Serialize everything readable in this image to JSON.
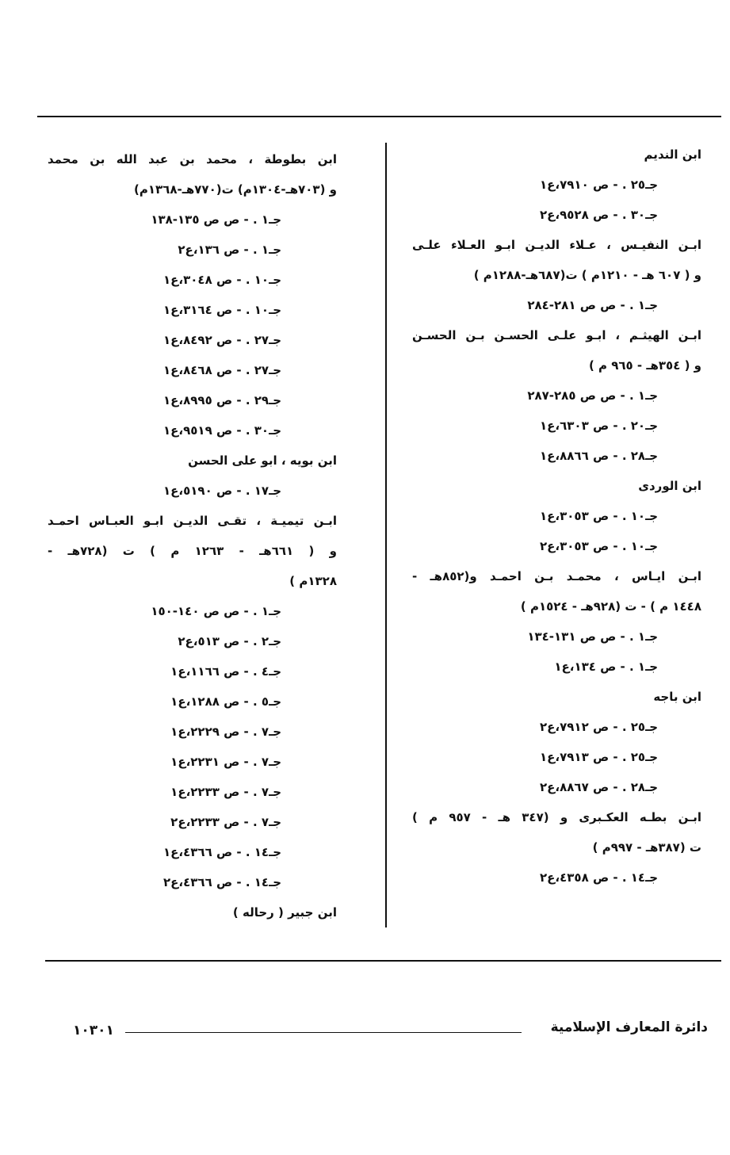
{
  "columns": [
    {
      "entries": [
        {
          "heading": [
            "ابن النديم"
          ],
          "refs": [
            "جـ٢٥ . - ص ٧٩١٠،ع١",
            "جـ٣٠ . - ص ٩٥٢٨،ع٢"
          ]
        },
        {
          "heading": [
            "ابـن النفيـس ، عـلاء الديـن ابـو العـلاء علـى",
            "و ( ٦٠٧ هـ - ١٢١٠م ) ت(٦٨٧هـ-١٢٨٨م )"
          ],
          "refs": [
            "جـ١ . - ص ص ٢٨١-٢٨٤"
          ]
        },
        {
          "heading": [
            "ابـن الهيثـم ، ابـو علـى الحسـن بـن الحسـن",
            "و ( ٣٥٤هـ - ٩٦٥ م )"
          ],
          "refs": [
            "جـ١ . - ص ص ٢٨٥-٢٨٧",
            "جـ٢٠ . - ص ٦٣٠٣،ع١",
            "جـ٢٨ . - ص ٨٨٦٦،ع١"
          ]
        },
        {
          "heading": [
            "ابن الوردى"
          ],
          "refs": [
            "جـ١٠ . - ص ٣٠٥٣،ع١",
            "جـ١٠ . - ص ٣٠٥٣،ع٢"
          ]
        },
        {
          "heading": [
            "ابـن ايـاس ، محمـد بـن احمـد و(٨٥٢هـ -",
            "١٤٤٨ م ) - ت (٩٢٨هـ - ١٥٢٤م )"
          ],
          "refs": [
            "جـ١ . - ص ص ١٣١-١٣٤",
            "جـ١ . - ص ١٣٤،ع١"
          ]
        },
        {
          "heading": [
            "ابن باجه"
          ],
          "refs": [
            "جـ٢٥ . - ص ٧٩١٢،ع٢",
            "جـ٢٥ . - ص ٧٩١٣،ع١",
            "جـ٢٨ . - ص ٨٨٦٧،ع٢"
          ]
        },
        {
          "heading": [
            "ابـن بطـه العكـبرى و (٣٤٧ هـ - ٩٥٧ م )",
            "ت (٣٨٧هـ - ٩٩٧م )"
          ],
          "refs": [
            "جـ١٤ . - ص ٤٣٥٨،ع٢"
          ]
        }
      ]
    },
    {
      "entries": [
        {
          "heading": [
            "ابن بطوطة ، محمد بن عبد الله بن محمد",
            "و (٧٠٣هـ-١٣٠٤م) ت(٧٧٠هـ-١٣٦٨م)"
          ],
          "refs": [
            "جـ١ . - ص ص ١٣٥-١٣٨",
            "جـ١ . - ص ١٣٦،ع٢",
            "جـ١٠ . - ص ٣٠٤٨،ع١",
            "جـ١٠ . - ص ٣١٦٤،ع١",
            "جـ٢٧ . - ص ٨٤٩٢،ع١",
            "جـ٢٧ . - ص ٨٤٦٨،ع١",
            "جـ٢٩ . - ص ٨٩٩٥،ع١",
            "جـ٣٠ . - ص ٩٥١٩،ع١"
          ]
        },
        {
          "heading": [
            "ابن بويه ، ابو على الحسن"
          ],
          "refs": [
            "جـ١٧ . - ص ٥١٩٠،ع١"
          ]
        },
        {
          "heading": [
            "ابـن تيميـة ، تقـى الديـن ابـو العبـاس احمـد",
            "و ( ٦٦١هـ - ١٢٦٣ م ) ت (٧٢٨هـ -",
            "١٣٢٨م )"
          ],
          "refs": [
            "جـ١ . - ص ص ١٤٠-١٥٠",
            "جـ٢ . - ص ٥١٣،ع٢",
            "جـ٤ . - ص ١١٦٦،ع١",
            "جـ٥ . - ص ١٢٨٨،ع١",
            "جـ٧ . - ص ٢٢٢٩،ع١",
            "جـ٧ . - ص ٢٢٣١،ع١",
            "جـ٧ . - ص ٢٢٣٣،ع١",
            "جـ٧ . - ص ٢٢٣٣،ع٢",
            "جـ١٤ . - ص ٤٣٦٦،ع١",
            "جـ١٤ . - ص ٤٣٦٦،ع٢"
          ]
        },
        {
          "heading": [
            "ابن جبير ( رحاله )"
          ],
          "refs": []
        }
      ]
    }
  ],
  "footer": {
    "title": "دائرة المعارف الإسلامية",
    "page": "١٠٣٠١"
  }
}
